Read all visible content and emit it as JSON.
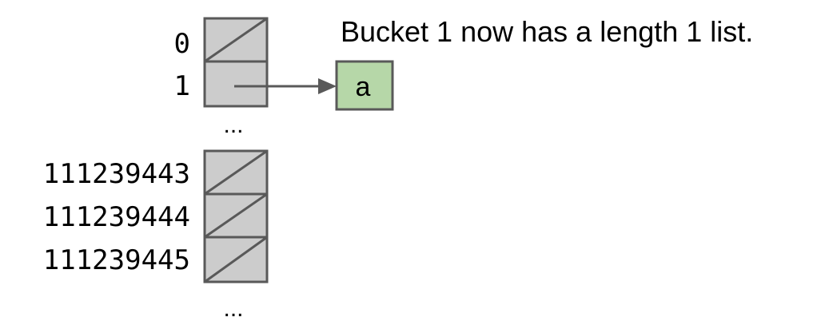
{
  "caption": "Bucket 1 now has a length 1 list.",
  "buckets_top": [
    {
      "index": "0",
      "empty": true
    },
    {
      "index": "1",
      "empty": false
    }
  ],
  "buckets_bottom": [
    {
      "index": "111239443",
      "empty": true
    },
    {
      "index": "111239444",
      "empty": true
    },
    {
      "index": "111239445",
      "empty": true
    }
  ],
  "ellipsis_middle": "...",
  "ellipsis_bottom": "...",
  "list_node": {
    "label": "a"
  },
  "colors": {
    "bucket_fill": "#cccccc",
    "bucket_stroke": "#595959",
    "node_fill": "#b6d7a8",
    "node_stroke": "#595959",
    "arrow": "#595959"
  }
}
